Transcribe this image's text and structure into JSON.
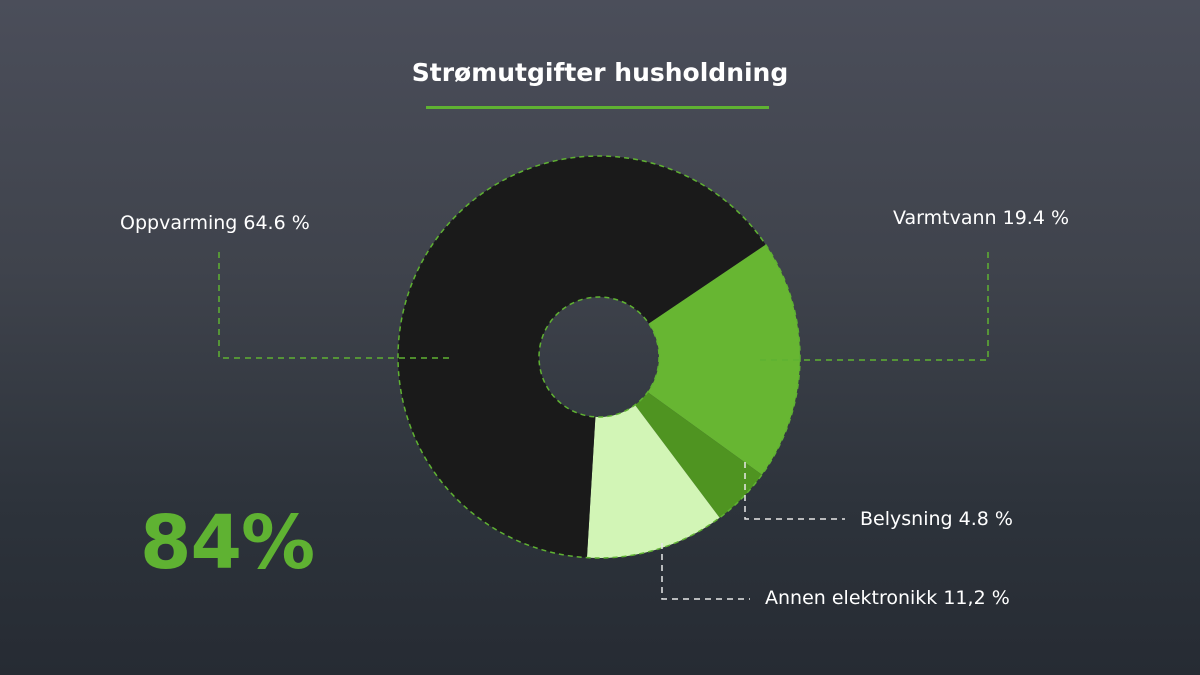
{
  "chart_data": {
    "type": "pie",
    "title": "Strømutgifter husholdning",
    "categories": [
      "Oppvarming",
      "Varmtvann",
      "Belysning",
      "Annen elektronikk"
    ],
    "values": [
      64.6,
      19.4,
      4.8,
      11.2
    ],
    "labels": [
      "Oppvarming 64.6 %",
      "Varmtvann 19.4 %",
      "Belysning 4.8 %",
      "Annen elektronikk 11,2 %"
    ],
    "colors": [
      "#1a1a1a",
      "#67b632",
      "#4f9421",
      "#d2f5b6"
    ],
    "accent": "#5fb232"
  },
  "highlight": "84%"
}
